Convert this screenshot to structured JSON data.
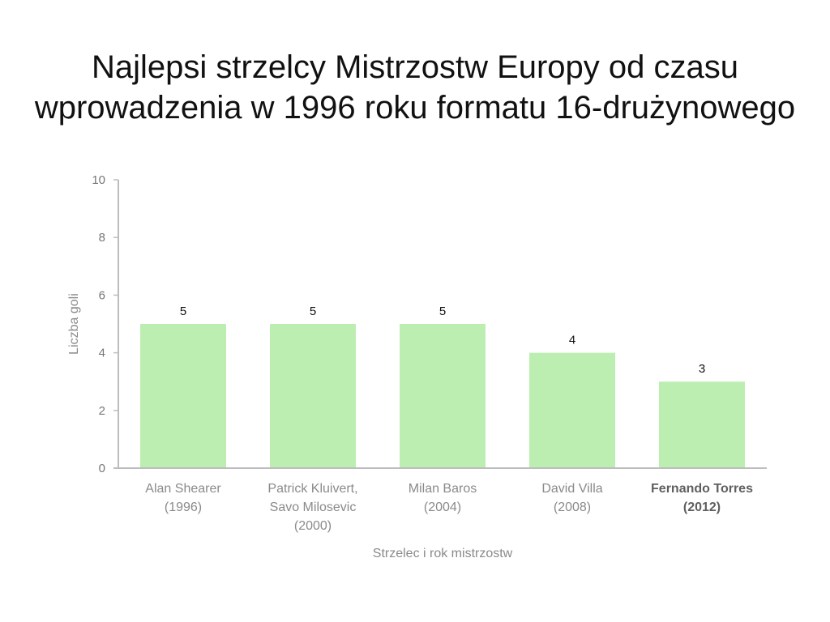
{
  "title_lines": [
    "Najlepsi strzelcy Mistrzostw Europy od czasu",
    "wprowadzenia w 1996 roku formatu 16-drużynowego"
  ],
  "chart_data": {
    "type": "bar",
    "title": "Najlepsi strzelcy Mistrzostw Europy od czasu wprowadzenia w 1996 roku formatu 16-drużynowego",
    "categories": [
      [
        "Alan Shearer",
        "(1996)"
      ],
      [
        "Patrick Kluivert,",
        "Savo Milosevic",
        "(2000)"
      ],
      [
        "Milan Baros",
        "(2004)"
      ],
      [
        "David Villa",
        "(2008)"
      ],
      [
        "Fernando Torres",
        "(2012)"
      ]
    ],
    "highlighted_category": 4,
    "values": [
      5,
      5,
      5,
      4,
      3
    ],
    "data_labels": [
      "5",
      "5",
      "5",
      "4",
      "3"
    ],
    "xlabel": "Strzelec i rok mistrzostw",
    "ylabel": "Liczba goli",
    "ylim": [
      0,
      10
    ],
    "yticks": [
      0,
      2,
      4,
      6,
      8,
      10
    ],
    "grid": false,
    "legend": "none",
    "colors": {
      "bar": "#bdeeb1",
      "axis": "#bdbdbd",
      "tick_label": "#757575",
      "category_label": "#8a8a8a",
      "category_label_highlight": "#5f5f5f",
      "data_label": "#111111",
      "axis_title": "#8a8a8a"
    }
  }
}
